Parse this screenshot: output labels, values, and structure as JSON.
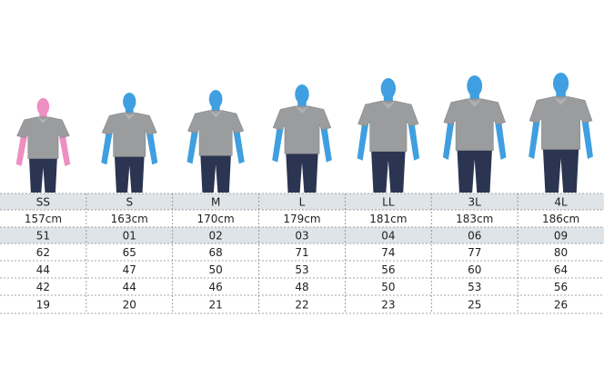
{
  "table": {
    "rows": [
      [
        "SS",
        "S",
        "M",
        "L",
        "LL",
        "3L",
        "4L"
      ],
      [
        "157cm",
        "163cm",
        "170cm",
        "179cm",
        "181cm",
        "183cm",
        "186cm"
      ],
      [
        "51",
        "01",
        "02",
        "03",
        "04",
        "06",
        "09"
      ],
      [
        62,
        65,
        68,
        71,
        74,
        77,
        80
      ],
      [
        44,
        47,
        50,
        53,
        56,
        60,
        64
      ],
      [
        42,
        44,
        46,
        48,
        50,
        53,
        56
      ],
      [
        19,
        20,
        21,
        22,
        23,
        25,
        26
      ]
    ]
  }
}
